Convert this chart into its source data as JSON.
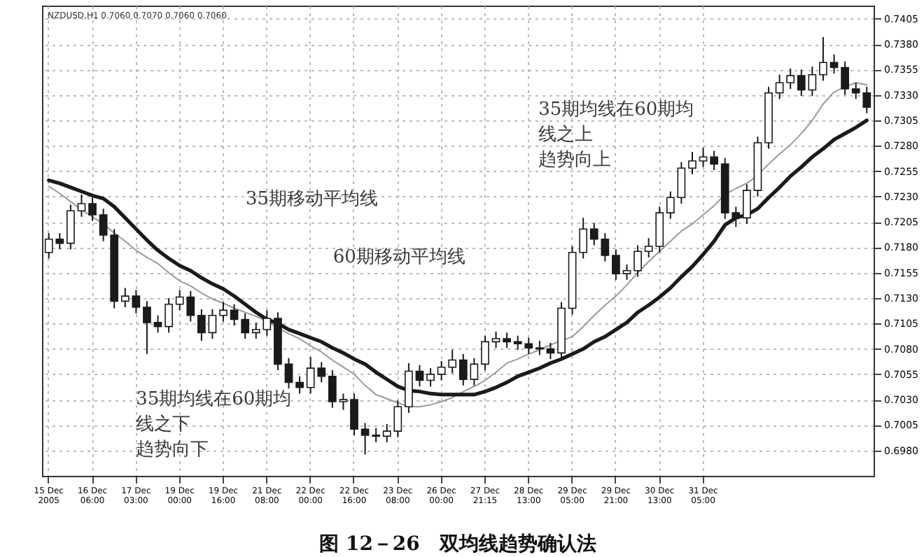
{
  "chart_data": {
    "type": "candlestick",
    "title": "图 12－26　双均线趋势确认法",
    "subtitle": "NZDUSD,H1 0.7060 0.7070 0.7060 0.7060",
    "annotations": [
      "35期移动平均线",
      "60期移动平均线",
      "35期均线在60期均线之下趋势向下",
      "35期均线在60期均线之上趋势向上"
    ],
    "categories": [
      "15 Dec 2005",
      null,
      null,
      null,
      "16 Dec 06:00",
      null,
      null,
      null,
      "17 Dec 03:00",
      null,
      null,
      null,
      "19 Dec 00:00",
      null,
      null,
      null,
      "19 Dec 16:00",
      null,
      null,
      null,
      "21 Dec 08:00",
      null,
      null,
      null,
      "22 Dec 00:00",
      null,
      null,
      null,
      "22 Dec 16:00",
      null,
      null,
      null,
      "23 Dec 08:00",
      null,
      null,
      null,
      "26 Dec 00:00",
      null,
      null,
      null,
      "27 Dec 21:15",
      null,
      null,
      null,
      "28 Dec 13:00",
      null,
      null,
      null,
      "29 Dec 05:00",
      null,
      null,
      null,
      "29 Dec 21:00",
      null,
      null,
      null,
      "30 Dec 13:00",
      null,
      null,
      null,
      "31 Dec 05:00",
      null,
      null,
      null,
      null,
      null,
      null,
      null,
      null,
      null,
      null,
      null,
      null,
      null,
      null,
      null
    ],
    "series": [
      {
        "color": "#1a1a1a",
        "ohlc": [
          [
            0.7175,
            0.7194,
            0.7169,
            0.7188
          ],
          [
            0.7188,
            0.7194,
            0.7178,
            0.7184
          ],
          [
            0.7184,
            0.7222,
            0.7178,
            0.7216
          ],
          [
            0.7216,
            0.7232,
            0.721,
            0.7223
          ],
          [
            0.7223,
            0.7229,
            0.7206,
            0.7212
          ],
          [
            0.7212,
            0.7218,
            0.7186,
            0.7192
          ],
          [
            0.7192,
            0.7198,
            0.712,
            0.7127
          ],
          [
            0.7127,
            0.714,
            0.7121,
            0.7132
          ],
          [
            0.7132,
            0.7138,
            0.7115,
            0.7121
          ],
          [
            0.7121,
            0.7127,
            0.7075,
            0.7106
          ],
          [
            0.7106,
            0.7113,
            0.7096,
            0.7102
          ],
          [
            0.7102,
            0.713,
            0.7096,
            0.7124
          ],
          [
            0.7124,
            0.7138,
            0.7118,
            0.7131
          ],
          [
            0.7131,
            0.7137,
            0.7107,
            0.7113
          ],
          [
            0.7113,
            0.7119,
            0.7088,
            0.7096
          ],
          [
            0.7096,
            0.7119,
            0.709,
            0.7113
          ],
          [
            0.7113,
            0.7126,
            0.7107,
            0.7118
          ],
          [
            0.7118,
            0.7124,
            0.7103,
            0.7109
          ],
          [
            0.7109,
            0.7115,
            0.709,
            0.7096
          ],
          [
            0.7096,
            0.7106,
            0.709,
            0.7099
          ],
          [
            0.7099,
            0.7118,
            0.7093,
            0.711
          ],
          [
            0.711,
            0.7116,
            0.7059,
            0.7065
          ],
          [
            0.7065,
            0.7071,
            0.7041,
            0.7047
          ],
          [
            0.7047,
            0.7053,
            0.7036,
            0.7042
          ],
          [
            0.7042,
            0.7072,
            0.7036,
            0.7061
          ],
          [
            0.7061,
            0.7067,
            0.7047,
            0.7053
          ],
          [
            0.7053,
            0.7059,
            0.7022,
            0.7028
          ],
          [
            0.7028,
            0.7036,
            0.702,
            0.703
          ],
          [
            0.703,
            0.7036,
            0.6995,
            0.7001
          ],
          [
            0.7001,
            0.7007,
            0.6976,
            0.6995
          ],
          [
            0.6995,
            0.7002,
            0.6988,
            0.6994
          ],
          [
            0.6994,
            0.7006,
            0.6988,
            0.6999
          ],
          [
            0.6999,
            0.7029,
            0.6993,
            0.7023
          ],
          [
            0.7023,
            0.7066,
            0.7017,
            0.7058
          ],
          [
            0.7058,
            0.7064,
            0.7043,
            0.7049
          ],
          [
            0.7049,
            0.7061,
            0.7043,
            0.7055
          ],
          [
            0.7055,
            0.7068,
            0.7049,
            0.7062
          ],
          [
            0.7062,
            0.7079,
            0.7056,
            0.7069
          ],
          [
            0.7069,
            0.7075,
            0.7044,
            0.705
          ],
          [
            0.705,
            0.7071,
            0.7044,
            0.7065
          ],
          [
            0.7065,
            0.7093,
            0.7059,
            0.7087
          ],
          [
            0.7087,
            0.7097,
            0.7081,
            0.709
          ],
          [
            0.709,
            0.7096,
            0.7081,
            0.7087
          ],
          [
            0.7087,
            0.7093,
            0.7079,
            0.7085
          ],
          [
            0.7085,
            0.7091,
            0.7075,
            0.7081
          ],
          [
            0.7081,
            0.7088,
            0.7074,
            0.708
          ],
          [
            0.708,
            0.7086,
            0.707,
            0.7076
          ],
          [
            0.7076,
            0.7126,
            0.707,
            0.712
          ],
          [
            0.712,
            0.7181,
            0.7114,
            0.7175
          ],
          [
            0.7175,
            0.7209,
            0.7169,
            0.7198
          ],
          [
            0.7198,
            0.7204,
            0.7182,
            0.7188
          ],
          [
            0.7188,
            0.7194,
            0.7166,
            0.7172
          ],
          [
            0.7172,
            0.7178,
            0.7148,
            0.7154
          ],
          [
            0.7154,
            0.7163,
            0.7148,
            0.7157
          ],
          [
            0.7157,
            0.7182,
            0.7151,
            0.7176
          ],
          [
            0.7176,
            0.7189,
            0.717,
            0.7181
          ],
          [
            0.7181,
            0.722,
            0.7175,
            0.7214
          ],
          [
            0.7214,
            0.7235,
            0.7208,
            0.7229
          ],
          [
            0.7229,
            0.7264,
            0.7223,
            0.7258
          ],
          [
            0.7258,
            0.7274,
            0.7252,
            0.7265
          ],
          [
            0.7265,
            0.7278,
            0.7259,
            0.7269
          ],
          [
            0.7269,
            0.7275,
            0.7256,
            0.7262
          ],
          [
            0.7262,
            0.7268,
            0.7208,
            0.7214
          ],
          [
            0.7214,
            0.722,
            0.72,
            0.7209
          ],
          [
            0.7209,
            0.7242,
            0.7203,
            0.7236
          ],
          [
            0.7236,
            0.7289,
            0.723,
            0.7283
          ],
          [
            0.7283,
            0.7338,
            0.7277,
            0.7332
          ],
          [
            0.7332,
            0.735,
            0.7326,
            0.7342
          ],
          [
            0.7342,
            0.7356,
            0.7336,
            0.7349
          ],
          [
            0.7349,
            0.7355,
            0.7329,
            0.7335
          ],
          [
            0.7335,
            0.7358,
            0.7329,
            0.735
          ],
          [
            0.735,
            0.7387,
            0.7344,
            0.7362
          ],
          [
            0.7362,
            0.737,
            0.7351,
            0.7357
          ],
          [
            0.7357,
            0.7363,
            0.733,
            0.7336
          ],
          [
            0.7336,
            0.7342,
            0.7326,
            0.7332
          ],
          [
            0.7332,
            0.7338,
            0.7312,
            0.7318
          ]
        ]
      },
      {
        "type": "line",
        "color": "#9a9a9a",
        "values": [
          0.724,
          0.7233,
          0.7225,
          0.7217,
          0.721,
          0.7203,
          0.7194,
          0.7186,
          0.7177,
          0.717,
          0.7164,
          0.7155,
          0.7147,
          0.7142,
          0.7135,
          0.7129,
          0.7125,
          0.712,
          0.7116,
          0.7112,
          0.7107,
          0.7101,
          0.7095,
          0.709,
          0.7083,
          0.7077,
          0.7069,
          0.7062,
          0.7055,
          0.7044,
          0.7035,
          0.7031,
          0.7027,
          0.7023,
          0.7023,
          0.7025,
          0.7028,
          0.7032,
          0.7038,
          0.7043,
          0.7049,
          0.7057,
          0.7066,
          0.707,
          0.7075,
          0.7079,
          0.7084,
          0.7088,
          0.7092,
          0.7102,
          0.7113,
          0.7123,
          0.7132,
          0.7143,
          0.7155,
          0.7166,
          0.7176,
          0.7186,
          0.7196,
          0.7203,
          0.7212,
          0.7221,
          0.7232,
          0.7238,
          0.7243,
          0.7251,
          0.7262,
          0.7272,
          0.7281,
          0.7292,
          0.7305,
          0.7321,
          0.7333,
          0.7338,
          0.7342,
          0.734
        ]
      },
      {
        "type": "line",
        "color": "#1a1a1a",
        "values": [
          0.7246,
          0.7243,
          0.7239,
          0.7235,
          0.7231,
          0.7228,
          0.722,
          0.7209,
          0.7198,
          0.7187,
          0.7177,
          0.7169,
          0.7162,
          0.7157,
          0.715,
          0.7144,
          0.7139,
          0.7132,
          0.7124,
          0.7116,
          0.7109,
          0.7105,
          0.7099,
          0.7095,
          0.7091,
          0.7087,
          0.7081,
          0.7076,
          0.707,
          0.7065,
          0.7057,
          0.705,
          0.7043,
          0.7039,
          0.7038,
          0.7036,
          0.7035,
          0.7035,
          0.7035,
          0.7035,
          0.7038,
          0.7042,
          0.7047,
          0.7053,
          0.7057,
          0.7061,
          0.7066,
          0.707,
          0.7075,
          0.708,
          0.7087,
          0.7092,
          0.7099,
          0.7106,
          0.7116,
          0.7123,
          0.7131,
          0.714,
          0.7151,
          0.7161,
          0.7173,
          0.7186,
          0.7202,
          0.7209,
          0.7212,
          0.7218,
          0.7229,
          0.7239,
          0.725,
          0.7259,
          0.7269,
          0.7277,
          0.7286,
          0.7292,
          0.7298,
          0.7305
        ]
      }
    ],
    "ylim": [
      0.6955,
      0.7418
    ],
    "yticks": [
      {
        "value": 0.698,
        "label": "0.6980"
      },
      0.7005,
      {
        "value": 0.703,
        "label": "0.7030"
      },
      0.7055,
      {
        "value": 0.708,
        "label": "0.7080"
      },
      0.7105,
      {
        "value": 0.713,
        "label": "0.7130"
      },
      0.7155,
      {
        "value": 0.718,
        "label": "0.7180"
      },
      0.7205,
      {
        "value": 0.723,
        "label": "0.7230"
      },
      0.7255,
      {
        "value": 0.728,
        "label": "0.7280"
      },
      0.7305,
      {
        "value": 0.733,
        "label": "0.7330"
      },
      0.7355,
      {
        "value": 0.738,
        "label": "0.7380"
      },
      0.7405
    ],
    "grid": true
  }
}
